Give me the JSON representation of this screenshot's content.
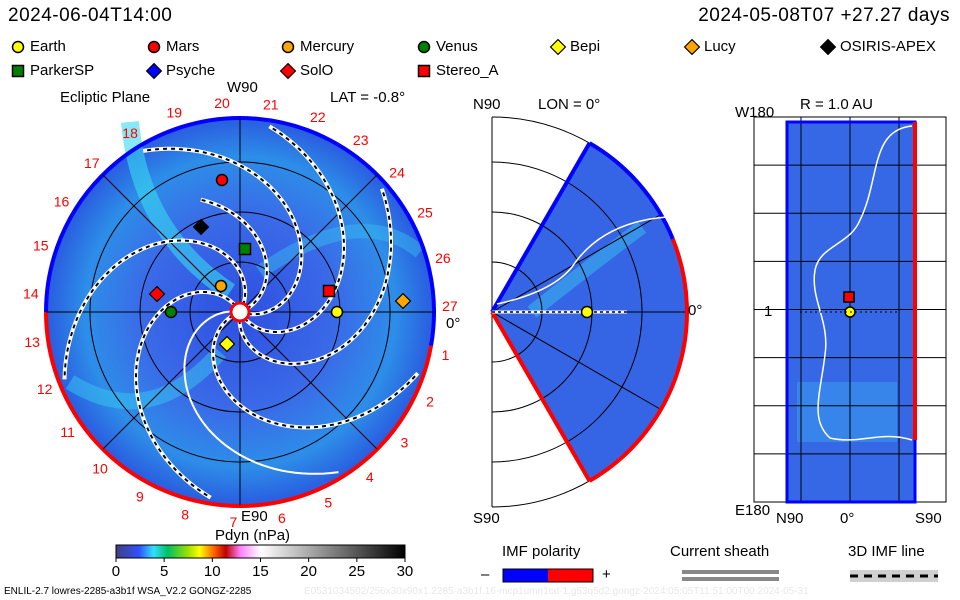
{
  "header": {
    "time": "2024-06-04T14:00",
    "run": "2024-05-08T07 +27.27 days"
  },
  "legend": [
    {
      "name": "Earth",
      "shape": "circle",
      "color": "#ffff00"
    },
    {
      "name": "Mars",
      "shape": "circle",
      "color": "#ff0000"
    },
    {
      "name": "Mercury",
      "shape": "circle",
      "color": "#ffa500"
    },
    {
      "name": "Venus",
      "shape": "circle",
      "color": "#008000"
    },
    {
      "name": "Bepi",
      "shape": "diamond",
      "color": "#ffff00"
    },
    {
      "name": "Lucy",
      "shape": "diamond",
      "color": "#ffa500"
    },
    {
      "name": "OSIRIS-APEX",
      "shape": "diamond",
      "color": "#000000"
    },
    {
      "name": "ParkerSP",
      "shape": "square",
      "color": "#008000"
    },
    {
      "name": "Psyche",
      "shape": "diamond",
      "color": "#0000ff"
    },
    {
      "name": "SolO",
      "shape": "diamond",
      "color": "#ff0000"
    },
    {
      "name": "Stereo_A",
      "shape": "square",
      "color": "#ff0000"
    }
  ],
  "panels": {
    "ecliptic": {
      "title": "Ecliptic Plane",
      "top": "W90",
      "bottom": "E90",
      "right": "0°",
      "lat": "LAT = -0.8°",
      "ticks": [
        "1",
        "2",
        "3",
        "4",
        "5",
        "6",
        "7",
        "8",
        "9",
        "10",
        "11",
        "12",
        "13",
        "14",
        "15",
        "16",
        "17",
        "18",
        "19",
        "20",
        "21",
        "22",
        "23",
        "24",
        "25",
        "26",
        "27"
      ]
    },
    "meridional": {
      "top": "N90",
      "bottom": "S90",
      "lon": "LON = 0°",
      "right": "0°"
    },
    "radial": {
      "title": "R = 1.0 AU",
      "top_left": "W180",
      "mid_left": "1",
      "bottom_left": "E180",
      "x_left": "N90",
      "x_mid": "0°",
      "x_right": "S90"
    }
  },
  "colorbar": {
    "title": "Pdyn (nPa)",
    "ticks": [
      "0",
      "5",
      "10",
      "15",
      "20",
      "25",
      "30"
    ],
    "range": [
      0,
      30
    ]
  },
  "keys": {
    "imf": "IMF polarity",
    "minus": "–",
    "plus": "+",
    "sheath": "Current sheath",
    "imfline": "3D IMF line"
  },
  "footer": {
    "model": "ENLIL-2.7 lowres-2285-a3b1f WSA_V2.2 GONGZ-2285",
    "faded": "E0531034502/256x30x90x1.2285-a3b1f.16-mcp1umn1cd-1.g53q5d2.gongz-2024:05:05T11:51:00T00   2024-05-31"
  },
  "colors": {
    "blue": "#0000ff",
    "red": "#ff0000",
    "field": "#3c64e6"
  }
}
